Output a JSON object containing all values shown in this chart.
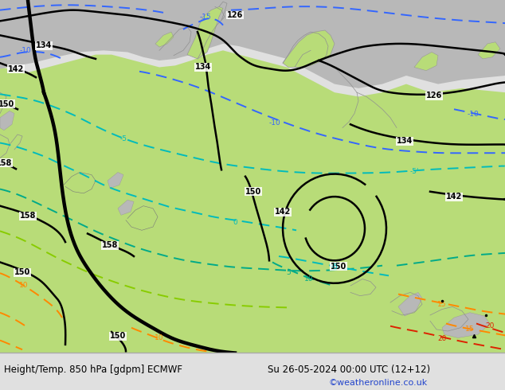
{
  "title_left": "Height/Temp. 850 hPa [gdpm] ECMWF",
  "title_right": "Su 26-05-2024 00:00 UTC (12+12)",
  "copyright": "©weatheronline.co.uk",
  "bg_map": "#c8c8c8",
  "land_green": "#b8dc78",
  "land_green2": "#c8e888",
  "sea_gray": "#b8b8b8",
  "bottom_bg": "#e0e0e0",
  "text_color": "#000000",
  "copyright_color": "#2244cc",
  "title_fontsize": 8.5,
  "copyright_fontsize": 8
}
